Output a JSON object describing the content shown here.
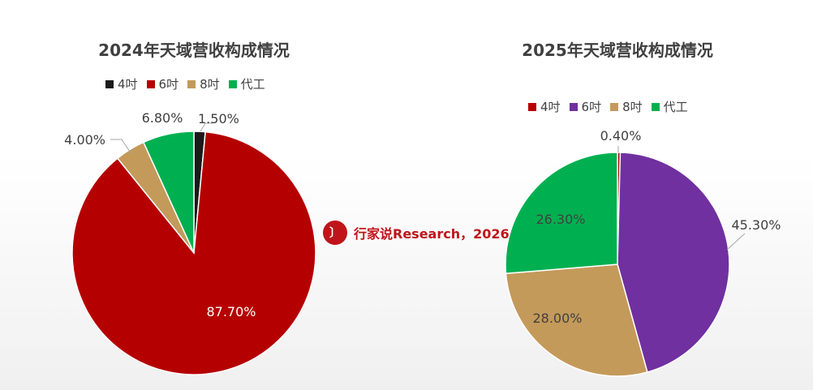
{
  "watermark": {
    "text": "行家说Research，2026",
    "logo": "行家说-logo"
  },
  "chart_data": [
    {
      "type": "pie",
      "title": "2024年天域营收构成情况",
      "legend_position": "top",
      "categories": [
        "4吋",
        "6吋",
        "8吋",
        "代工"
      ],
      "values": [
        1.5,
        87.7,
        4.0,
        6.8
      ],
      "labels": [
        "1.50%",
        "87.70%",
        "4.00%",
        "6.80%"
      ],
      "colors": [
        "#1a1a1a",
        "#b50000",
        "#c49a5a",
        "#00b050"
      ]
    },
    {
      "type": "pie",
      "title": "2025年天域营收构成情况",
      "legend_position": "top",
      "categories": [
        "4吋",
        "6吋",
        "8吋",
        "代工"
      ],
      "values": [
        0.4,
        45.3,
        28.0,
        26.3
      ],
      "labels": [
        "0.40%",
        "45.30%",
        "28.00%",
        "26.30%"
      ],
      "colors": [
        "#b50000",
        "#7030a0",
        "#c49a5a",
        "#00b050"
      ]
    }
  ]
}
